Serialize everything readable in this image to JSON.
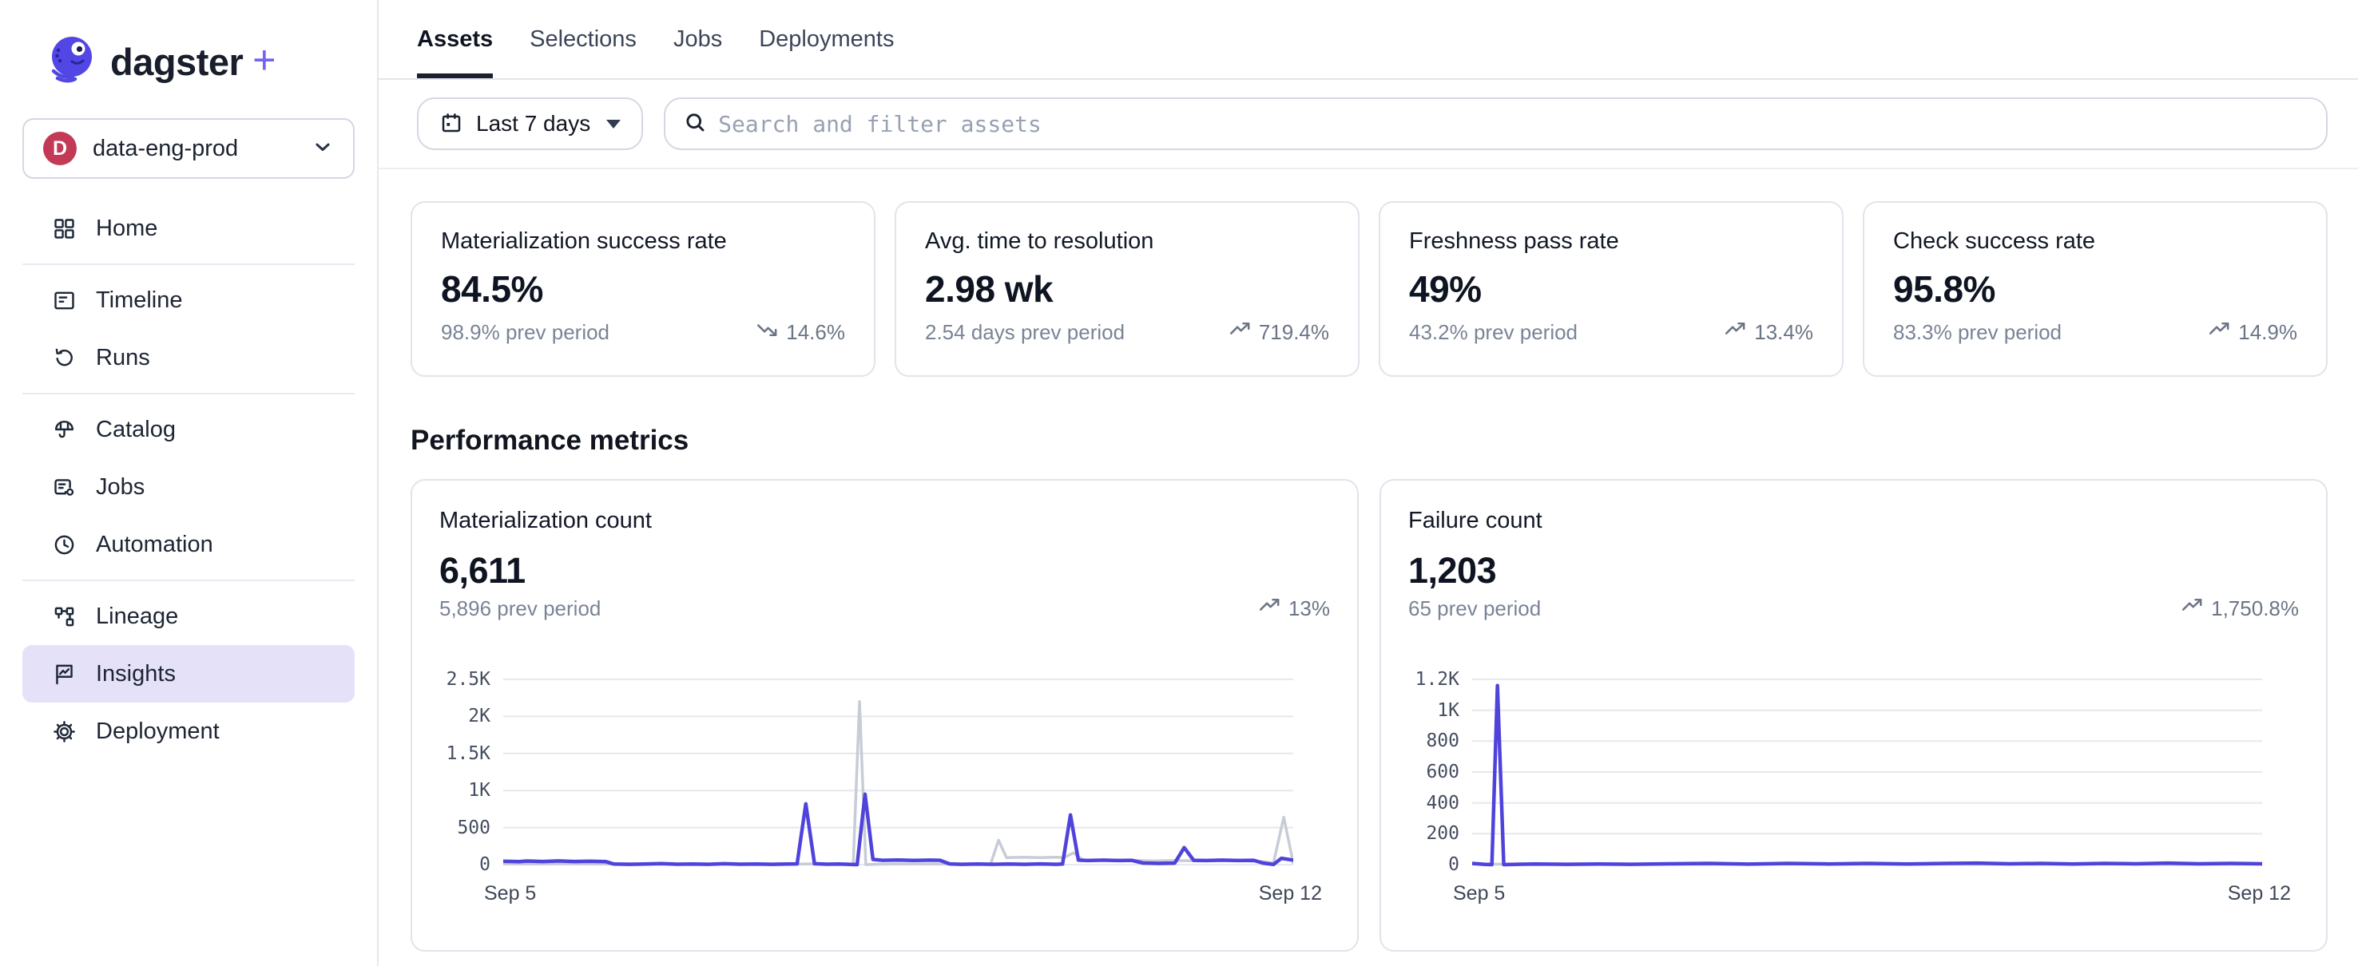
{
  "brand": {
    "logo_text": "dagster",
    "logo_plus": "+"
  },
  "top_nav": {
    "tabs": [
      {
        "label": "Assets",
        "active": true
      },
      {
        "label": "Selections",
        "active": false
      },
      {
        "label": "Jobs",
        "active": false
      },
      {
        "label": "Deployments",
        "active": false
      }
    ]
  },
  "deployment_selector": {
    "initial": "D",
    "label": "data-eng-prod"
  },
  "sidebar": {
    "items": [
      {
        "label": "Home"
      },
      {
        "label": "Timeline"
      },
      {
        "label": "Runs"
      },
      {
        "label": "Catalog"
      },
      {
        "label": "Jobs"
      },
      {
        "label": "Automation"
      },
      {
        "label": "Lineage"
      },
      {
        "label": "Insights",
        "active": true
      },
      {
        "label": "Deployment"
      }
    ]
  },
  "filter_bar": {
    "date_range_label": "Last 7 days",
    "search_placeholder": "Search and filter assets"
  },
  "summary_cards": [
    {
      "title": "Materialization success rate",
      "value": "84.5%",
      "prev": "98.9% prev period",
      "delta": "14.6%",
      "trend": "down"
    },
    {
      "title": "Avg. time to resolution",
      "value": "2.98 wk",
      "prev": "2.54 days prev period",
      "delta": "719.4%",
      "trend": "up"
    },
    {
      "title": "Freshness pass rate",
      "value": "49%",
      "prev": "43.2% prev period",
      "delta": "13.4%",
      "trend": "up"
    },
    {
      "title": "Check success rate",
      "value": "95.8%",
      "prev": "83.3% prev period",
      "delta": "14.9%",
      "trend": "up"
    }
  ],
  "section": {
    "title": "Performance metrics"
  },
  "chart_cards": [
    {
      "title": "Materialization count",
      "value": "6,611",
      "prev": "5,896 prev period",
      "delta": "13%",
      "trend": "up"
    },
    {
      "title": "Failure count",
      "value": "1,203",
      "prev": "65 prev period",
      "delta": "1,750.8%",
      "trend": "up"
    }
  ],
  "chart_data": [
    {
      "type": "line",
      "title": "Materialization count",
      "x_labels": [
        "Sep 5",
        "Sep 12"
      ],
      "y_max": 2500,
      "grid": true,
      "y_ticks": [
        {
          "value": 0,
          "label": "0"
        },
        {
          "value": 500,
          "label": "500"
        },
        {
          "value": 1000,
          "label": "1K"
        },
        {
          "value": 1500,
          "label": "1.5K"
        },
        {
          "value": 2000,
          "label": "2K"
        },
        {
          "value": 2500,
          "label": "2.5K"
        }
      ],
      "series": [
        {
          "name": "Previous period",
          "color": "#C7CCD6",
          "width": 3.5,
          "points": [
            [
              0,
              12
            ],
            [
              0.04,
              8
            ],
            [
              0.08,
              12
            ],
            [
              0.12,
              6
            ],
            [
              0.16,
              10
            ],
            [
              0.2,
              6
            ],
            [
              0.24,
              10
            ],
            [
              0.28,
              6
            ],
            [
              0.32,
              10
            ],
            [
              0.36,
              6
            ],
            [
              0.4,
              10
            ],
            [
              0.43,
              5
            ],
            [
              0.443,
              0
            ],
            [
              0.451,
              2200
            ],
            [
              0.459,
              0
            ],
            [
              0.48,
              6
            ],
            [
              0.52,
              10
            ],
            [
              0.56,
              6
            ],
            [
              0.6,
              8
            ],
            [
              0.617,
              10
            ],
            [
              0.627,
              330
            ],
            [
              0.637,
              95
            ],
            [
              0.66,
              100
            ],
            [
              0.68,
              95
            ],
            [
              0.7,
              100
            ],
            [
              0.71,
              95
            ],
            [
              0.722,
              160
            ],
            [
              0.734,
              60
            ],
            [
              0.76,
              55
            ],
            [
              0.79,
              60
            ],
            [
              0.82,
              50
            ],
            [
              0.85,
              55
            ],
            [
              0.88,
              50
            ],
            [
              0.91,
              55
            ],
            [
              0.94,
              50
            ],
            [
              0.96,
              40
            ],
            [
              0.975,
              25
            ],
            [
              0.988,
              640
            ],
            [
              1,
              25
            ]
          ]
        },
        {
          "name": "Current period",
          "color": "#4F43DB",
          "width": 4.5,
          "points": [
            [
              0,
              45
            ],
            [
              0.02,
              40
            ],
            [
              0.03,
              48
            ],
            [
              0.05,
              42
            ],
            [
              0.07,
              50
            ],
            [
              0.09,
              42
            ],
            [
              0.11,
              46
            ],
            [
              0.13,
              40
            ],
            [
              0.14,
              8
            ],
            [
              0.16,
              4
            ],
            [
              0.18,
              8
            ],
            [
              0.2,
              14
            ],
            [
              0.22,
              5
            ],
            [
              0.24,
              8
            ],
            [
              0.26,
              4
            ],
            [
              0.28,
              12
            ],
            [
              0.3,
              5
            ],
            [
              0.32,
              8
            ],
            [
              0.34,
              4
            ],
            [
              0.36,
              8
            ],
            [
              0.372,
              10
            ],
            [
              0.383,
              820
            ],
            [
              0.394,
              12
            ],
            [
              0.41,
              5
            ],
            [
              0.425,
              8
            ],
            [
              0.44,
              2
            ],
            [
              0.448,
              0
            ],
            [
              0.458,
              950
            ],
            [
              0.468,
              70
            ],
            [
              0.48,
              58
            ],
            [
              0.5,
              62
            ],
            [
              0.52,
              56
            ],
            [
              0.54,
              60
            ],
            [
              0.553,
              58
            ],
            [
              0.565,
              10
            ],
            [
              0.58,
              4
            ],
            [
              0.6,
              8
            ],
            [
              0.62,
              4
            ],
            [
              0.64,
              8
            ],
            [
              0.66,
              4
            ],
            [
              0.68,
              10
            ],
            [
              0.7,
              4
            ],
            [
              0.708,
              8
            ],
            [
              0.718,
              670
            ],
            [
              0.728,
              60
            ],
            [
              0.74,
              55
            ],
            [
              0.76,
              60
            ],
            [
              0.78,
              55
            ],
            [
              0.795,
              58
            ],
            [
              0.81,
              22
            ],
            [
              0.83,
              16
            ],
            [
              0.85,
              20
            ],
            [
              0.862,
              230
            ],
            [
              0.874,
              58
            ],
            [
              0.89,
              55
            ],
            [
              0.91,
              60
            ],
            [
              0.93,
              55
            ],
            [
              0.95,
              58
            ],
            [
              0.962,
              20
            ],
            [
              0.975,
              2
            ],
            [
              0.985,
              85
            ],
            [
              1,
              60
            ]
          ]
        }
      ]
    },
    {
      "type": "line",
      "title": "Failure count",
      "x_labels": [
        "Sep 5",
        "Sep 12"
      ],
      "y_max": 1200,
      "grid": true,
      "y_ticks": [
        {
          "value": 0,
          "label": "0"
        },
        {
          "value": 200,
          "label": "200"
        },
        {
          "value": 400,
          "label": "400"
        },
        {
          "value": 600,
          "label": "600"
        },
        {
          "value": 800,
          "label": "800"
        },
        {
          "value": 1000,
          "label": "1K"
        },
        {
          "value": 1200,
          "label": "1.2K"
        }
      ],
      "series": [
        {
          "name": "Previous period",
          "color": "#C7CCD6",
          "width": 3.5,
          "points": [
            [
              0,
              3
            ],
            [
              0.1,
              2
            ],
            [
              0.2,
              3
            ],
            [
              0.3,
              2
            ],
            [
              0.4,
              3
            ],
            [
              0.5,
              2
            ],
            [
              0.6,
              3
            ],
            [
              0.7,
              2
            ],
            [
              0.8,
              3
            ],
            [
              0.9,
              2
            ],
            [
              1,
              3
            ]
          ]
        },
        {
          "name": "Current period",
          "color": "#4F43DB",
          "width": 4.5,
          "points": [
            [
              0,
              8
            ],
            [
              0.015,
              2
            ],
            [
              0.025,
              0
            ],
            [
              0.032,
              1160
            ],
            [
              0.04,
              0
            ],
            [
              0.08,
              4
            ],
            [
              0.12,
              2
            ],
            [
              0.16,
              4
            ],
            [
              0.2,
              2
            ],
            [
              0.25,
              5
            ],
            [
              0.3,
              8
            ],
            [
              0.35,
              3
            ],
            [
              0.4,
              8
            ],
            [
              0.45,
              4
            ],
            [
              0.5,
              8
            ],
            [
              0.55,
              4
            ],
            [
              0.6,
              8
            ],
            [
              0.64,
              10
            ],
            [
              0.68,
              5
            ],
            [
              0.72,
              8
            ],
            [
              0.76,
              4
            ],
            [
              0.8,
              8
            ],
            [
              0.84,
              5
            ],
            [
              0.88,
              10
            ],
            [
              0.92,
              5
            ],
            [
              0.96,
              8
            ],
            [
              1,
              5
            ]
          ]
        }
      ]
    }
  ],
  "colors": {
    "accent_purple": "#4F43DB",
    "prev_series_gray": "#C7CCD6",
    "active_item_bg": "#E5E1F8",
    "deployment_badge": "#C23A55",
    "logo_purple": "#5247E5"
  }
}
